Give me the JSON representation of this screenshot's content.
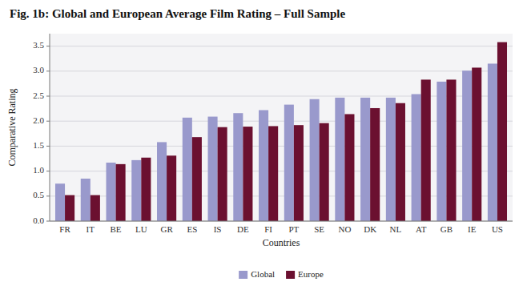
{
  "chart_data": {
    "type": "bar",
    "title": "Fig. 1b: Global and European Average Film Rating – Full Sample",
    "xlabel": "Countries",
    "ylabel": "Comparative Rating",
    "categories": [
      "FR",
      "IT",
      "BE",
      "LU",
      "GR",
      "ES",
      "IS",
      "DE",
      "FI",
      "PT",
      "SE",
      "NO",
      "DK",
      "NL",
      "AT",
      "GB",
      "IE",
      "US"
    ],
    "series": [
      {
        "name": "Global",
        "color": "#9999CC",
        "values": [
          0.75,
          0.85,
          1.17,
          1.22,
          1.58,
          2.07,
          2.09,
          2.16,
          2.22,
          2.33,
          2.44,
          2.47,
          2.47,
          2.47,
          2.54,
          2.79,
          3.01,
          3.15
        ]
      },
      {
        "name": "Europe",
        "color": "#6B1030",
        "values": [
          0.52,
          0.52,
          1.14,
          1.27,
          1.31,
          1.68,
          1.88,
          1.89,
          1.9,
          1.92,
          1.96,
          2.14,
          2.26,
          2.36,
          2.83,
          2.83,
          3.07,
          3.58
        ]
      }
    ],
    "ylim": [
      0.0,
      3.75
    ],
    "yticks": [
      {
        "value": 0.0,
        "label": "0.0"
      },
      0.5,
      {
        "value": 1.0,
        "label": "1.0"
      },
      1.5,
      {
        "value": 2.0,
        "label": "2.0"
      },
      2.5,
      {
        "value": 3.0,
        "label": "3.0"
      },
      3.5
    ],
    "grid": true,
    "legend": "bottom"
  }
}
